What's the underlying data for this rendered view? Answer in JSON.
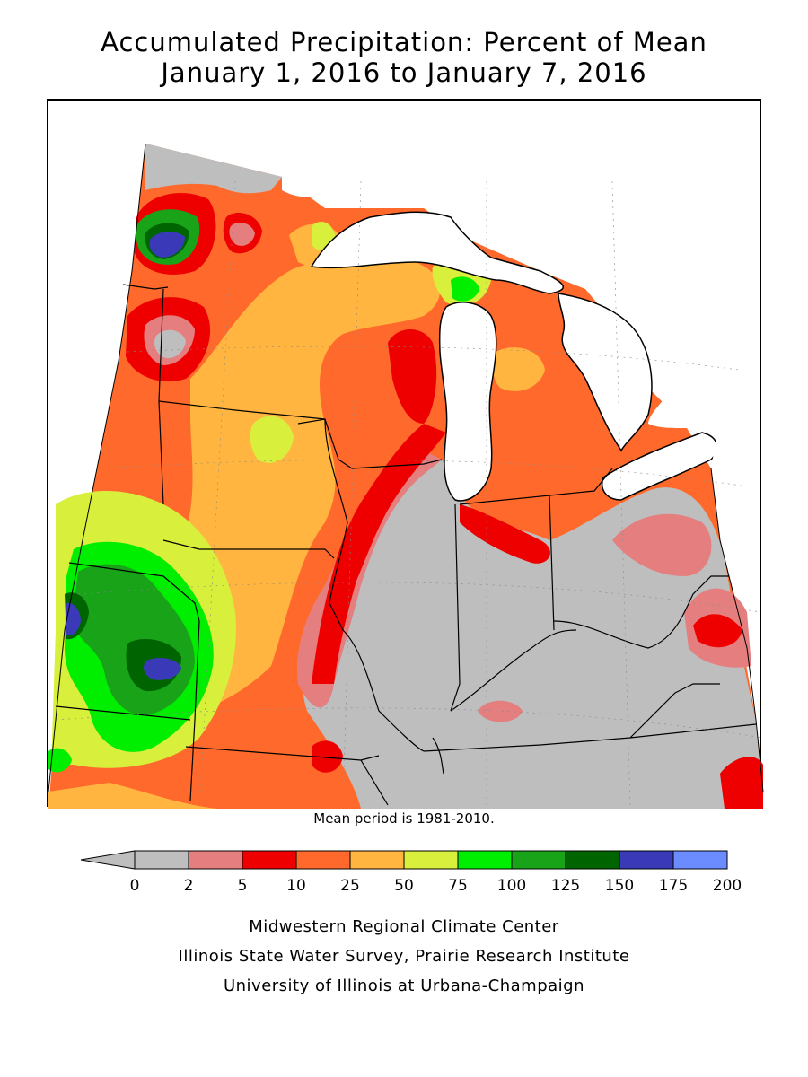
{
  "title": {
    "line1": "Accumulated Precipitation: Percent of Mean",
    "line2": "January 1, 2016 to January 7, 2016"
  },
  "note": "Mean period is 1981-2010.",
  "legend": {
    "ticks": [
      "0",
      "2",
      "5",
      "10",
      "25",
      "50",
      "75",
      "100",
      "125",
      "150",
      "175",
      "200"
    ],
    "colors": [
      "#bebebe",
      "#e57f7f",
      "#ee0000",
      "#ff6a2c",
      "#ffb53f",
      "#d8ef3c",
      "#00ee00",
      "#19a319",
      "#006400",
      "#3a3ab8",
      "#6b8cff"
    ]
  },
  "credits": [
    "Midwestern Regional Climate Center",
    "Illinois State Water Survey, Prairie Research Institute",
    "University of Illinois at Urbana-Champaign"
  ]
}
